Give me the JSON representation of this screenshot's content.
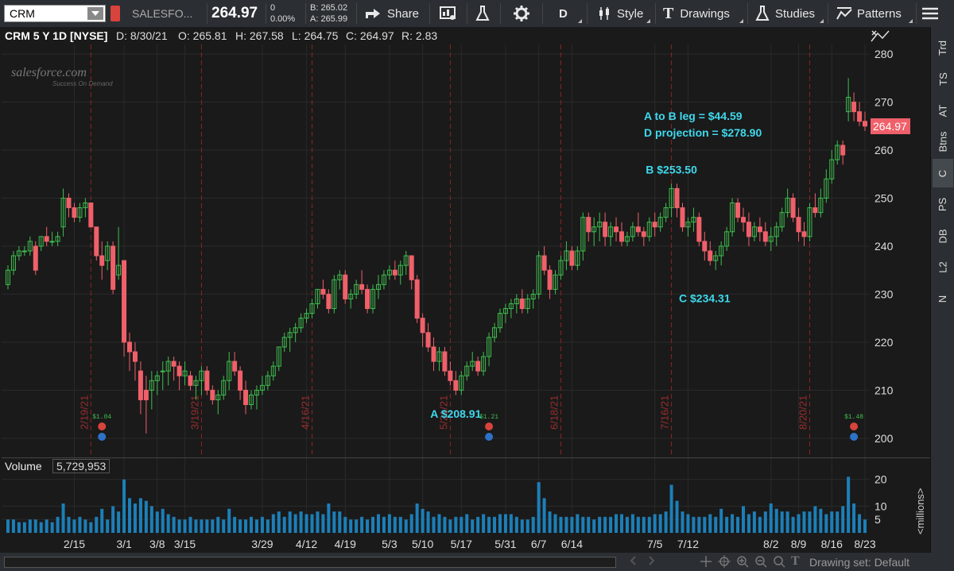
{
  "toolbar": {
    "symbol": "CRM",
    "company": "SALESFO...",
    "last": "264.97",
    "change": "0",
    "change_pct": "0.00%",
    "bid": "B: 265.02",
    "ask": "A: 265.99",
    "share": "Share",
    "period": "D",
    "style": "Style",
    "drawings": "Drawings",
    "studies": "Studies",
    "patterns": "Patterns"
  },
  "header": {
    "title": "CRM 5 Y 1D [NYSE]",
    "date": "D: 8/30/21",
    "open": "O: 265.81",
    "high": "H: 267.58",
    "low": "L: 264.75",
    "close": "C: 264.97",
    "range": "R: 2.83"
  },
  "logo": {
    "name": "salesforce.com",
    "tagline": "Success On Demand"
  },
  "chart_data": {
    "type": "candlestick",
    "price_axis": {
      "ticks": [
        200,
        210,
        220,
        230,
        240,
        250,
        260,
        270,
        280
      ],
      "ymin": 196,
      "ymax": 282
    },
    "last_price_label": "264.97",
    "candles": [
      [
        232,
        236,
        231,
        235
      ],
      [
        235,
        239,
        234,
        238
      ],
      [
        238,
        240,
        237,
        239
      ],
      [
        239,
        240,
        238,
        239
      ],
      [
        239,
        242,
        238,
        241
      ],
      [
        240,
        241,
        234,
        235
      ],
      [
        240,
        242,
        239,
        242
      ],
      [
        242,
        244,
        240,
        241
      ],
      [
        241,
        243,
        240,
        241
      ],
      [
        241,
        243,
        240,
        242
      ],
      [
        244,
        252,
        242,
        250
      ],
      [
        250,
        251,
        246,
        248
      ],
      [
        248,
        249,
        245,
        246
      ],
      [
        246,
        249,
        245,
        248
      ],
      [
        248,
        250,
        246,
        249
      ],
      [
        249,
        249,
        244,
        244
      ],
      [
        244,
        244,
        237,
        238
      ],
      [
        238,
        241,
        233,
        236
      ],
      [
        237,
        241,
        235,
        240
      ],
      [
        240,
        241,
        230,
        231
      ],
      [
        234,
        244,
        233,
        236
      ],
      [
        237,
        237,
        217,
        220
      ],
      [
        220,
        222,
        214,
        218
      ],
      [
        218,
        220,
        212,
        216
      ],
      [
        214,
        216,
        205,
        208
      ],
      [
        210,
        213,
        201,
        208
      ],
      [
        210,
        214,
        206,
        212
      ],
      [
        212,
        214,
        209,
        213
      ],
      [
        214,
        216,
        210,
        214
      ],
      [
        214,
        217,
        211,
        216
      ],
      [
        216,
        217,
        212,
        215
      ],
      [
        215,
        216,
        210,
        213
      ],
      [
        213,
        216,
        211,
        214
      ],
      [
        213,
        214,
        210,
        211
      ],
      [
        211,
        213,
        208,
        212
      ],
      [
        212,
        215,
        209,
        214
      ],
      [
        214,
        215,
        209,
        210
      ],
      [
        210,
        211,
        207,
        208
      ],
      [
        208,
        210,
        205,
        209
      ],
      [
        209,
        213,
        208,
        212
      ],
      [
        212,
        218,
        210,
        216
      ],
      [
        216,
        218,
        213,
        214
      ],
      [
        214,
        215,
        208,
        210
      ],
      [
        210,
        212,
        205,
        207
      ],
      [
        207,
        210,
        206,
        209
      ],
      [
        209,
        211,
        206,
        210
      ],
      [
        210,
        213,
        209,
        211
      ],
      [
        211,
        214,
        210,
        213
      ],
      [
        213,
        216,
        212,
        215
      ],
      [
        215,
        219,
        214,
        219
      ],
      [
        219,
        222,
        218,
        221
      ],
      [
        221,
        223,
        218,
        222
      ],
      [
        222,
        224,
        220,
        223
      ],
      [
        223,
        226,
        222,
        225
      ],
      [
        225,
        227,
        224,
        226
      ],
      [
        226,
        229,
        225,
        228
      ],
      [
        228,
        231,
        227,
        231
      ],
      [
        231,
        233,
        229,
        230
      ],
      [
        230,
        231,
        226,
        227
      ],
      [
        227,
        234,
        226,
        233
      ],
      [
        233,
        235,
        231,
        234
      ],
      [
        234,
        235,
        228,
        229
      ],
      [
        229,
        231,
        227,
        230
      ],
      [
        230,
        233,
        229,
        232
      ],
      [
        232,
        235,
        230,
        231
      ],
      [
        231,
        232,
        226,
        227
      ],
      [
        227,
        232,
        226,
        231
      ],
      [
        231,
        234,
        229,
        232
      ],
      [
        232,
        235,
        231,
        234
      ],
      [
        234,
        236,
        233,
        235
      ],
      [
        235,
        237,
        233,
        234
      ],
      [
        234,
        237,
        232,
        236
      ],
      [
        236,
        239,
        234,
        238
      ],
      [
        238,
        238,
        231,
        233
      ],
      [
        233,
        234,
        224,
        225
      ],
      [
        225,
        226,
        219,
        222
      ],
      [
        222,
        224,
        218,
        219
      ],
      [
        219,
        221,
        214,
        216
      ],
      [
        216,
        219,
        214,
        218
      ],
      [
        218,
        219,
        213,
        214
      ],
      [
        214,
        216,
        211,
        212
      ],
      [
        212,
        214,
        209,
        210
      ],
      [
        210,
        214,
        209,
        213
      ],
      [
        213,
        216,
        212,
        215
      ],
      [
        215,
        218,
        214,
        216
      ],
      [
        216,
        217,
        213,
        214
      ],
      [
        214,
        218,
        213,
        217
      ],
      [
        217,
        222,
        215,
        221
      ],
      [
        221,
        224,
        220,
        223
      ],
      [
        223,
        227,
        222,
        226
      ],
      [
        226,
        228,
        224,
        227
      ],
      [
        227,
        229,
        225,
        228
      ],
      [
        228,
        230,
        226,
        229
      ],
      [
        229,
        231,
        226,
        227
      ],
      [
        227,
        230,
        226,
        229
      ],
      [
        229,
        231,
        227,
        230
      ],
      [
        230,
        239,
        229,
        238
      ],
      [
        238,
        240,
        234,
        235
      ],
      [
        235,
        236,
        229,
        231
      ],
      [
        231,
        235,
        230,
        234
      ],
      [
        234,
        238,
        233,
        237
      ],
      [
        237,
        241,
        235,
        239
      ],
      [
        239,
        240,
        235,
        236
      ],
      [
        236,
        240,
        235,
        239
      ],
      [
        239,
        247,
        237,
        246
      ],
      [
        246,
        247,
        241,
        243
      ],
      [
        243,
        246,
        240,
        244
      ],
      [
        244,
        247,
        241,
        245
      ],
      [
        245,
        247,
        240,
        242
      ],
      [
        242,
        245,
        240,
        244
      ],
      [
        244,
        246,
        241,
        243
      ],
      [
        243,
        245,
        240,
        241
      ],
      [
        241,
        243,
        240,
        242
      ],
      [
        242,
        245,
        241,
        244
      ],
      [
        244,
        247,
        242,
        243
      ],
      [
        243,
        244,
        240,
        242
      ],
      [
        242,
        246,
        241,
        245
      ],
      [
        245,
        247,
        242,
        244
      ],
      [
        244,
        247,
        243,
        246
      ],
      [
        246,
        249,
        245,
        248
      ],
      [
        248,
        253,
        246,
        252
      ],
      [
        252,
        253,
        246,
        248
      ],
      [
        248,
        249,
        243,
        244
      ],
      [
        244,
        246,
        242,
        245
      ],
      [
        245,
        248,
        243,
        246
      ],
      [
        246,
        247,
        240,
        241
      ],
      [
        241,
        243,
        237,
        239
      ],
      [
        239,
        241,
        236,
        237
      ],
      [
        237,
        239,
        235,
        238
      ],
      [
        238,
        241,
        236,
        240
      ],
      [
        240,
        244,
        239,
        243
      ],
      [
        243,
        250,
        242,
        249
      ],
      [
        249,
        250,
        245,
        246
      ],
      [
        246,
        248,
        243,
        245
      ],
      [
        245,
        247,
        240,
        242
      ],
      [
        242,
        245,
        241,
        244
      ],
      [
        244,
        246,
        241,
        243
      ],
      [
        243,
        245,
        240,
        241
      ],
      [
        241,
        244,
        239,
        242
      ],
      [
        242,
        245,
        240,
        244
      ],
      [
        244,
        248,
        243,
        247
      ],
      [
        247,
        252,
        246,
        250
      ],
      [
        250,
        251,
        245,
        246
      ],
      [
        246,
        248,
        241,
        243
      ],
      [
        243,
        245,
        240,
        242
      ],
      [
        242,
        249,
        241,
        248
      ],
      [
        248,
        251,
        246,
        247
      ],
      [
        247,
        252,
        246,
        250
      ],
      [
        250,
        256,
        249,
        254
      ],
      [
        254,
        260,
        253,
        258
      ],
      [
        258,
        262,
        257,
        261
      ],
      [
        261,
        262,
        257,
        259
      ],
      [
        268,
        275,
        266,
        271
      ],
      [
        270,
        272,
        266,
        268
      ],
      [
        268,
        270,
        265,
        266
      ],
      [
        266,
        268,
        264,
        265
      ]
    ],
    "annotations": [
      {
        "label": "A $208.91",
        "candle": 81,
        "price": 208.91,
        "position": "below"
      },
      {
        "label": "B $253.50",
        "candle": 120,
        "price": 253.5,
        "position": "above"
      },
      {
        "label": "C $234.31",
        "candle": 126,
        "price": 234.31,
        "position": "below"
      },
      {
        "label": "A to B leg = $44.59",
        "position": "top-right"
      },
      {
        "label": "D projection = $278.90",
        "position": "top-right"
      }
    ],
    "expiration_lines": [
      {
        "label": "2/19/21",
        "candle": 15
      },
      {
        "label": "3/19/21",
        "candle": 35
      },
      {
        "label": "4/16/21",
        "candle": 55
      },
      {
        "label": "5/21/21",
        "candle": 80
      },
      {
        "label": "6/18/21",
        "candle": 100
      },
      {
        "label": "7/16/21",
        "candle": 120
      },
      {
        "label": "8/20/21",
        "candle": 145
      }
    ],
    "events": [
      {
        "label": "$1.04",
        "candle": 17
      },
      {
        "label": "$1.21",
        "candle": 87
      },
      {
        "label": "$1.48",
        "candle": 153
      }
    ],
    "volume": {
      "label": "Volume",
      "value": "5,729,953",
      "unit": "<millions>",
      "ticks": [
        5,
        10,
        20
      ],
      "ymax": 22,
      "values": [
        5,
        5,
        4,
        4,
        5,
        5,
        4,
        5,
        4,
        6,
        11,
        6,
        5,
        6,
        5,
        4,
        6,
        9,
        5,
        10,
        8,
        20,
        13,
        11,
        13,
        12,
        10,
        8,
        9,
        7,
        6,
        5,
        5,
        6,
        5,
        5,
        5,
        5,
        6,
        5,
        9,
        6,
        5,
        5,
        6,
        5,
        6,
        5,
        7,
        8,
        6,
        8,
        7,
        8,
        7,
        7,
        8,
        7,
        11,
        8,
        8,
        6,
        5,
        5,
        6,
        5,
        6,
        7,
        6,
        7,
        6,
        6,
        5,
        7,
        11,
        9,
        8,
        6,
        7,
        6,
        5,
        6,
        6,
        7,
        5,
        6,
        7,
        6,
        6,
        7,
        7,
        7,
        6,
        5,
        5,
        6,
        19,
        13,
        8,
        7,
        6,
        6,
        6,
        7,
        6,
        6,
        5,
        6,
        6,
        6,
        7,
        7,
        6,
        7,
        6,
        6,
        6,
        7,
        7,
        8,
        18,
        12,
        8,
        7,
        6,
        6,
        6,
        7,
        6,
        9,
        6,
        7,
        6,
        10,
        7,
        8,
        6,
        8,
        11,
        9,
        8,
        8,
        6,
        7,
        8,
        8,
        10,
        9,
        7,
        8,
        8,
        10,
        21,
        11,
        7,
        5
      ]
    },
    "dates": [
      {
        "label": "2/15",
        "candle": 12
      },
      {
        "label": "3/1",
        "candle": 21
      },
      {
        "label": "3/8",
        "candle": 27
      },
      {
        "label": "3/15",
        "candle": 32
      },
      {
        "label": "3/29",
        "candle": 46
      },
      {
        "label": "4/12",
        "candle": 54
      },
      {
        "label": "4/19",
        "candle": 61
      },
      {
        "label": "5/3",
        "candle": 69
      },
      {
        "label": "5/10",
        "candle": 75
      },
      {
        "label": "5/17",
        "candle": 82
      },
      {
        "label": "5/31",
        "candle": 90
      },
      {
        "label": "6/7",
        "candle": 96
      },
      {
        "label": "6/14",
        "candle": 102
      },
      {
        "label": "7/5",
        "candle": 117
      },
      {
        "label": "7/12",
        "candle": 123
      },
      {
        "label": "8/2",
        "candle": 138
      },
      {
        "label": "8/9",
        "candle": 143
      },
      {
        "label": "8/16",
        "candle": 149
      },
      {
        "label": "8/23",
        "candle": 155
      }
    ]
  },
  "right_tabs": [
    "Trd",
    "TS",
    "AT",
    "Btns",
    "C",
    "PS",
    "DB",
    "L2",
    "N"
  ],
  "active_tab": "C",
  "bottom": {
    "drawing_set": "Drawing set: Default"
  },
  "colors": {
    "up": "#3fbf4f",
    "down": "#f0606a",
    "volume": "#1c7fb8",
    "annotation": "#3fd8ec",
    "exp_line": "#8a2424"
  }
}
